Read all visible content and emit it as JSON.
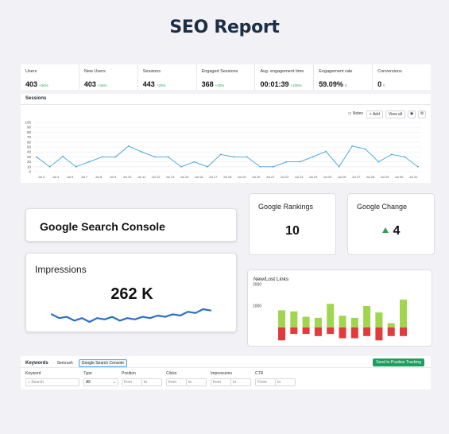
{
  "title": "SEO Report",
  "metrics": [
    {
      "label": "Users",
      "value": "403",
      "delta": "+34%"
    },
    {
      "label": "New Users",
      "value": "403",
      "delta": "+34%"
    },
    {
      "label": "Sessions",
      "value": "443",
      "delta": "+20%"
    },
    {
      "label": "Engaged Sessions",
      "value": "368",
      "delta": "+20%"
    },
    {
      "label": "Avg. engagement time",
      "value": "00:01:39",
      "delta": "+106%"
    },
    {
      "label": "Engagement rate",
      "value": "59.09%",
      "delta": "0"
    },
    {
      "label": "Conversions",
      "value": "0",
      "delta": "0"
    }
  ],
  "sessions": {
    "label": "Sessions",
    "tools": {
      "notes": "Notes",
      "add": "+ Add",
      "view_all": "View all"
    },
    "chart_data": {
      "type": "line",
      "ylim": [
        0,
        100
      ],
      "yticks": [
        0,
        10,
        20,
        30,
        40,
        50,
        60,
        70,
        80,
        90,
        100
      ],
      "xticks": [
        "Jul 3",
        "Jul 4",
        "Jul 5",
        "Jul 7",
        "Jul 8",
        "Jul 9",
        "Jul 10",
        "Jul 11",
        "Jul 12",
        "Jul 13",
        "Jul 15",
        "Jul 16",
        "Jul 17",
        "Jul 18",
        "Jul 19",
        "Jul 20",
        "Jul 21",
        "Jul 22",
        "Jul 23",
        "Jul 24",
        "Jul 25",
        "Jul 26",
        "Jul 27",
        "Jul 28",
        "Jul 29",
        "Jul 30",
        "Jul 31"
      ],
      "values": [
        30,
        10,
        31,
        10,
        20,
        30,
        30,
        52,
        40,
        30,
        30,
        10,
        20,
        10,
        35,
        30,
        30,
        10,
        10,
        20,
        20,
        30,
        41,
        10,
        52,
        46,
        20,
        35,
        30,
        10
      ],
      "color": "#3aa0e0"
    }
  },
  "gsc": {
    "title": "Google Search Console"
  },
  "impressions": {
    "label": "Impressions",
    "value": "262 K",
    "sparkline": [
      12,
      9,
      10,
      7,
      9,
      6,
      9,
      8,
      10,
      7,
      9,
      8,
      10,
      9,
      11,
      10,
      12,
      11,
      14,
      13,
      16,
      15
    ],
    "color": "#2a6fc9"
  },
  "rankings": {
    "label": "Google Rankings",
    "value": "10"
  },
  "change": {
    "label": "Google Change",
    "value": "4",
    "color": "#2f9e5b"
  },
  "links": {
    "label": "New/Lost Links",
    "chart_data": {
      "type": "bar",
      "yticks": [
        1000,
        2000
      ],
      "ylim": [
        0,
        2200
      ],
      "series": [
        {
          "name": "new",
          "values": [
            800,
            750,
            500,
            450,
            1100,
            550,
            450,
            1000,
            700,
            200,
            1300
          ],
          "color": "#9fd64e"
        },
        {
          "name": "lost",
          "values": [
            -600,
            -300,
            -300,
            -400,
            -300,
            -500,
            -500,
            -400,
            -600,
            -400,
            -400
          ],
          "color": "#e23b3b"
        }
      ]
    }
  },
  "keywords": {
    "title": "Keywords",
    "tabs": [
      "Semrush",
      "Google Search Console"
    ],
    "button": "Send to Position Tracking",
    "filters": {
      "keyword": {
        "label": "Keyword",
        "placeholder": "Search"
      },
      "type": {
        "label": "Type",
        "value": "All"
      },
      "position": {
        "label": "Position",
        "from": "from",
        "to": "to"
      },
      "clicks": {
        "label": "Clicks",
        "from": "from",
        "to": "to"
      },
      "impressions": {
        "label": "Impressions",
        "from": "from",
        "to": "to"
      },
      "ctr": {
        "label": "CTR",
        "from": "From",
        "to": "to"
      }
    }
  }
}
